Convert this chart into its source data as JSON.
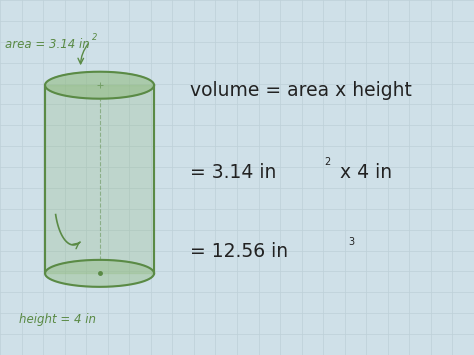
{
  "bg_color": "#cfe0e8",
  "grid_color": "#bdd0d8",
  "cylinder_color": "#5a8a45",
  "cylinder_fill": "#8db87a",
  "text_green": "#5a8a45",
  "text_dark": "#222222",
  "area_label": "area = 3.14 in",
  "area_sup": "2",
  "height_label": "height = 4 in",
  "line1": "volume = area x height",
  "line2a": "= 3.14 in",
  "line2b": "2",
  "line2c": " x 4 in",
  "line3a": "= 12.56 in",
  "line3b": "3",
  "fig_w": 4.74,
  "fig_h": 3.55,
  "dpi": 100
}
